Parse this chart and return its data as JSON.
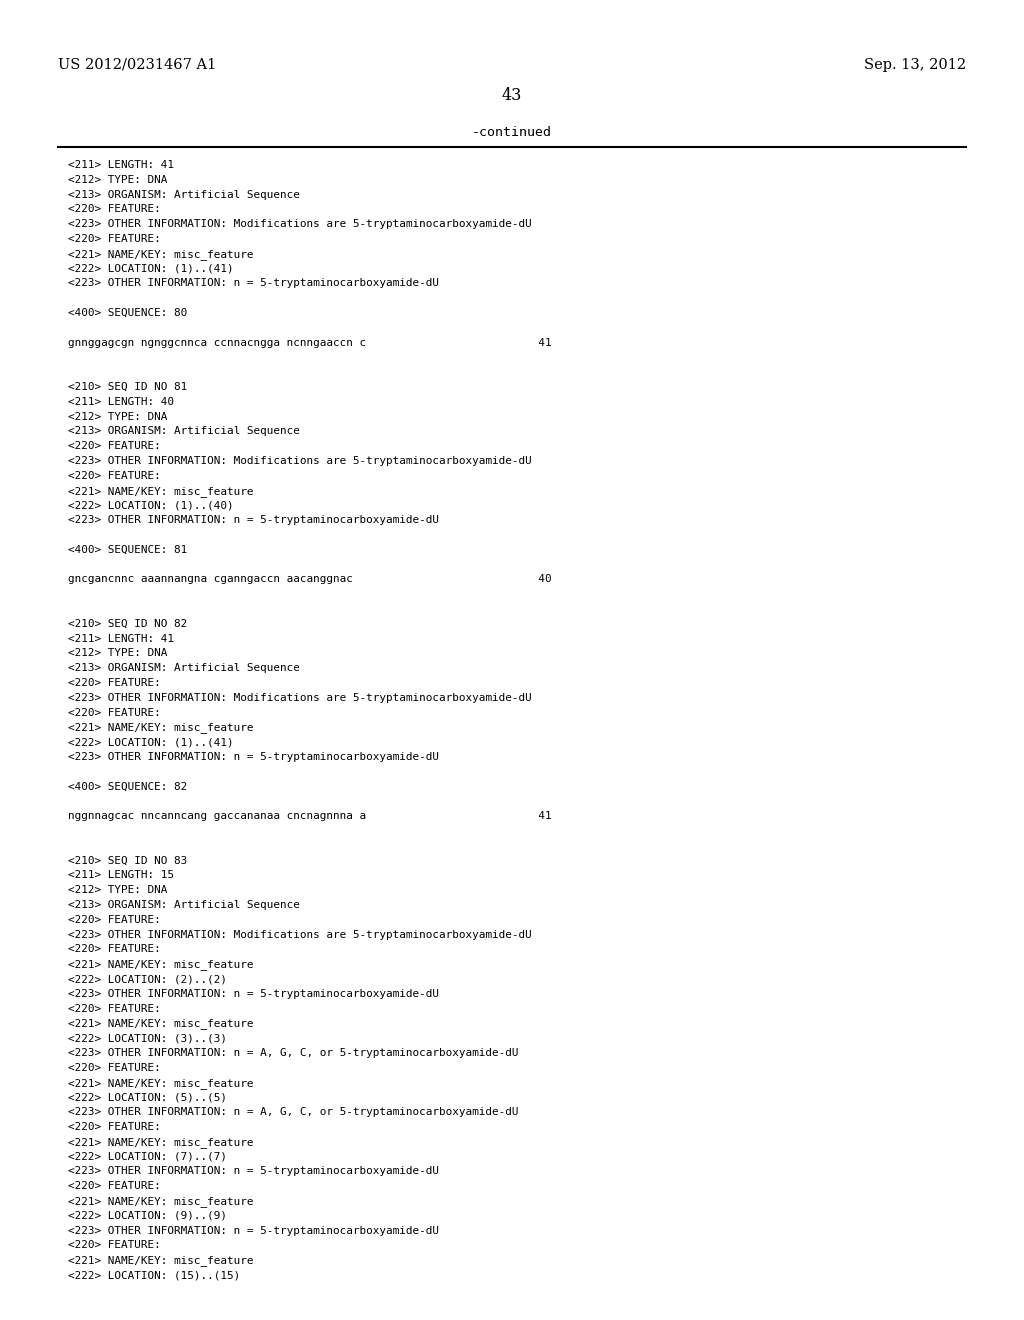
{
  "header_left": "US 2012/0231467 A1",
  "header_right": "Sep. 13, 2012",
  "page_number": "43",
  "continued_text": "-continued",
  "background_color": "#ffffff",
  "text_color": "#000000",
  "font_size_header": 10.5,
  "font_size_body": 8.5,
  "content_lines": [
    "<211> LENGTH: 41",
    "<212> TYPE: DNA",
    "<213> ORGANISM: Artificial Sequence",
    "<220> FEATURE:",
    "<223> OTHER INFORMATION: Modifications are 5-tryptaminocarboxyamide-dU",
    "<220> FEATURE:",
    "<221> NAME/KEY: misc_feature",
    "<222> LOCATION: (1)..(41)",
    "<223> OTHER INFORMATION: n = 5-tryptaminocarboxyamide-dU",
    "",
    "<400> SEQUENCE: 80",
    "",
    "gnnggagcgn ngnggcnnca ccnnacngga ncnngaaccn c                          41",
    "",
    "",
    "<210> SEQ ID NO 81",
    "<211> LENGTH: 40",
    "<212> TYPE: DNA",
    "<213> ORGANISM: Artificial Sequence",
    "<220> FEATURE:",
    "<223> OTHER INFORMATION: Modifications are 5-tryptaminocarboxyamide-dU",
    "<220> FEATURE:",
    "<221> NAME/KEY: misc_feature",
    "<222> LOCATION: (1)..(40)",
    "<223> OTHER INFORMATION: n = 5-tryptaminocarboxyamide-dU",
    "",
    "<400> SEQUENCE: 81",
    "",
    "gncgancnnc aaannangna cganngaccn aacanggnac                            40",
    "",
    "",
    "<210> SEQ ID NO 82",
    "<211> LENGTH: 41",
    "<212> TYPE: DNA",
    "<213> ORGANISM: Artificial Sequence",
    "<220> FEATURE:",
    "<223> OTHER INFORMATION: Modifications are 5-tryptaminocarboxyamide-dU",
    "<220> FEATURE:",
    "<221> NAME/KEY: misc_feature",
    "<222> LOCATION: (1)..(41)",
    "<223> OTHER INFORMATION: n = 5-tryptaminocarboxyamide-dU",
    "",
    "<400> SEQUENCE: 82",
    "",
    "nggnnagcac nncanncang gaccananaa cncnagnnna a                          41",
    "",
    "",
    "<210> SEQ ID NO 83",
    "<211> LENGTH: 15",
    "<212> TYPE: DNA",
    "<213> ORGANISM: Artificial Sequence",
    "<220> FEATURE:",
    "<223> OTHER INFORMATION: Modifications are 5-tryptaminocarboxyamide-dU",
    "<220> FEATURE:",
    "<221> NAME/KEY: misc_feature",
    "<222> LOCATION: (2)..(2)",
    "<223> OTHER INFORMATION: n = 5-tryptaminocarboxyamide-dU",
    "<220> FEATURE:",
    "<221> NAME/KEY: misc_feature",
    "<222> LOCATION: (3)..(3)",
    "<223> OTHER INFORMATION: n = A, G, C, or 5-tryptaminocarboxyamide-dU",
    "<220> FEATURE:",
    "<221> NAME/KEY: misc_feature",
    "<222> LOCATION: (5)..(5)",
    "<223> OTHER INFORMATION: n = A, G, C, or 5-tryptaminocarboxyamide-dU",
    "<220> FEATURE:",
    "<221> NAME/KEY: misc_feature",
    "<222> LOCATION: (7)..(7)",
    "<223> OTHER INFORMATION: n = 5-tryptaminocarboxyamide-dU",
    "<220> FEATURE:",
    "<221> NAME/KEY: misc_feature",
    "<222> LOCATION: (9)..(9)",
    "<223> OTHER INFORMATION: n = 5-tryptaminocarboxyamide-dU",
    "<220> FEATURE:",
    "<221> NAME/KEY: misc_feature",
    "<222> LOCATION: (15)..(15)"
  ]
}
